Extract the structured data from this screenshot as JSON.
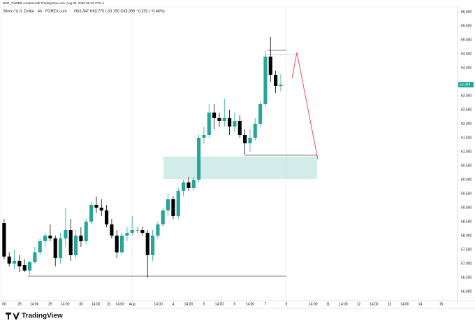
{
  "chart_data": {
    "type": "candlestick",
    "credit": "DMJ_TraDER created with TradingView.com, Aug 09, 2026 05:23 UTC-4",
    "title": "Silver / U.S. Dollar · 4h · FOREX.com",
    "ohlc_text": "O63.347 H63.775 L63.150 C63.399 −0.292 (−0.46%)",
    "footer": "TradingView",
    "up_color": "#26a69a",
    "down_color": "#000000",
    "grid": false,
    "open": [
      58.45,
      57.25,
      57.0,
      57.1,
      56.95,
      56.75,
      57.05,
      57.4,
      57.8,
      58.0,
      57.9,
      57.2,
      57.9,
      58.2,
      57.3,
      58.0,
      57.8,
      58.5,
      59.1,
      59.0,
      58.9,
      58.4,
      58.0,
      57.4,
      58.0,
      58.1,
      58.2,
      58.2,
      58.1,
      57.3,
      58.0,
      58.4,
      58.9,
      59.3,
      58.7,
      59.6,
      59.9,
      59.7,
      60.0,
      61.5,
      61.6,
      62.4,
      62.2,
      62.1,
      62.2,
      61.9,
      62.1,
      61.6,
      61.3,
      61.5,
      62.0,
      62.7,
      64.4,
      63.75,
      63.347
    ],
    "high": [
      58.6,
      57.4,
      57.5,
      57.3,
      57.15,
      57.1,
      57.6,
      57.9,
      58.1,
      58.4,
      58.0,
      58.1,
      59.0,
      58.6,
      58.2,
      58.3,
      58.6,
      59.2,
      59.4,
      59.3,
      59.1,
      58.6,
      58.2,
      58.1,
      58.3,
      58.7,
      58.3,
      58.3,
      58.2,
      58.2,
      58.5,
      59.0,
      59.5,
      59.4,
      59.7,
      60.0,
      60.1,
      60.1,
      61.6,
      61.9,
      62.7,
      62.7,
      62.4,
      62.9,
      62.5,
      62.4,
      62.3,
      61.8,
      61.8,
      62.2,
      62.8,
      64.6,
      65.1,
      63.9,
      63.775
    ],
    "low": [
      57.15,
      56.9,
      56.8,
      56.7,
      56.7,
      56.6,
      57.0,
      57.3,
      57.6,
      57.8,
      56.9,
      57.0,
      57.6,
      57.1,
      57.2,
      57.6,
      57.7,
      58.4,
      58.8,
      58.7,
      58.3,
      57.9,
      57.2,
      57.3,
      57.8,
      58.0,
      58.1,
      58.0,
      56.5,
      57.1,
      57.9,
      58.3,
      58.7,
      58.6,
      58.6,
      59.4,
      59.6,
      59.6,
      59.9,
      61.3,
      61.5,
      61.8,
      61.9,
      61.9,
      61.6,
      61.7,
      61.5,
      60.9,
      61.0,
      61.4,
      61.9,
      62.6,
      63.5,
      63.1,
      63.15
    ],
    "close": [
      57.25,
      57.0,
      57.1,
      56.9,
      56.75,
      57.05,
      57.4,
      57.8,
      58.0,
      57.9,
      57.2,
      57.9,
      58.2,
      57.3,
      58.0,
      57.8,
      58.5,
      59.1,
      59.0,
      58.9,
      58.4,
      58.0,
      57.4,
      58.0,
      58.1,
      58.2,
      58.2,
      58.1,
      57.3,
      58.0,
      58.4,
      58.9,
      59.3,
      58.7,
      59.6,
      59.9,
      59.7,
      60.0,
      61.5,
      61.6,
      62.4,
      62.2,
      62.1,
      62.2,
      61.9,
      62.1,
      61.6,
      61.3,
      61.5,
      62.0,
      62.7,
      64.4,
      63.75,
      63.35,
      63.399
    ],
    "ylim": [
      55.675,
      66.125
    ],
    "yticks": [
      {
        "value": 66,
        "label": "66.000"
      },
      {
        "value": 65.5,
        "label": "65.500"
      },
      {
        "value": 65,
        "label": "65.000"
      },
      {
        "value": 64.5,
        "label": "64.500"
      },
      {
        "value": 64,
        "label": "64.000"
      },
      {
        "value": 63,
        "label": "63.000"
      },
      {
        "value": 62.5,
        "label": "62.500"
      },
      {
        "value": 62,
        "label": "62.000"
      },
      {
        "value": 61.5,
        "label": "61.500"
      },
      {
        "value": 61,
        "label": "61.000"
      },
      {
        "value": 60.5,
        "label": "60.500"
      },
      {
        "value": 60,
        "label": "60.000"
      },
      {
        "value": 59.5,
        "label": "59.500"
      },
      {
        "value": 59,
        "label": "59.000"
      },
      {
        "value": 58.5,
        "label": "58.500"
      },
      {
        "value": 58,
        "label": "58.000"
      },
      {
        "value": 57.5,
        "label": "57.500"
      },
      {
        "value": 57,
        "label": "57.000"
      },
      {
        "value": 56.5,
        "label": "56.500"
      },
      {
        "value": 56,
        "label": "56.000"
      }
    ],
    "xlim": [
      -0.8,
      88.5
    ],
    "xticks": [
      {
        "value": 0,
        "label": "00"
      },
      {
        "value": 3,
        "label": "28"
      },
      {
        "value": 5.9,
        "label": "14:00"
      },
      {
        "value": 9,
        "label": "29"
      },
      {
        "value": 11.9,
        "label": "14:00"
      },
      {
        "value": 15,
        "label": "30"
      },
      {
        "value": 17.9,
        "label": "14:00"
      },
      {
        "value": 20.5,
        "label": "31"
      },
      {
        "value": 22.6,
        "label": "14:00"
      },
      {
        "value": 25,
        "label": "Aug"
      },
      {
        "value": 30.1,
        "label": "14:00"
      },
      {
        "value": 33,
        "label": "4"
      },
      {
        "value": 36,
        "label": "14:00"
      },
      {
        "value": 39,
        "label": "5"
      },
      {
        "value": 42,
        "label": "14:00"
      },
      {
        "value": 45,
        "label": "6"
      },
      {
        "value": 48,
        "label": "14:00"
      },
      {
        "value": 51,
        "label": "7"
      },
      {
        "value": 55.1,
        "label": "9"
      },
      {
        "value": 60.3,
        "label": "14:00"
      },
      {
        "value": 63.2,
        "label": "11"
      },
      {
        "value": 66.2,
        "label": "14:00"
      },
      {
        "value": 69.2,
        "label": "12"
      },
      {
        "value": 72.2,
        "label": "14:00"
      },
      {
        "value": 75.2,
        "label": "13"
      },
      {
        "value": 78.2,
        "label": "14:00"
      },
      {
        "value": 81.2,
        "label": "14"
      },
      {
        "value": 85.3,
        "label": "16"
      }
    ]
  }
}
